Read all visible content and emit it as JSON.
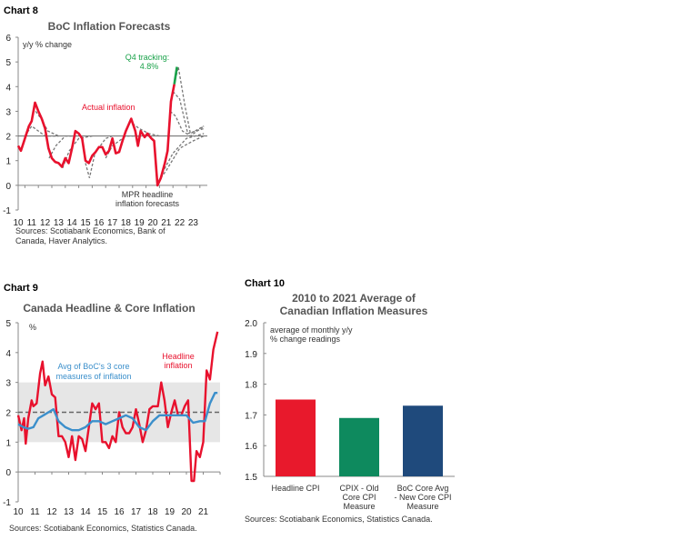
{
  "chart_data": [
    {
      "type": "line",
      "chart_label": "Chart 8",
      "title": "BoC Inflation Forecasts",
      "ylabel": "y/y % change",
      "ylim": [
        -1,
        6
      ],
      "yticks": [
        "6",
        "5",
        "4",
        "3",
        "2",
        "1",
        "0",
        "-1"
      ],
      "xticks": [
        "10",
        "11",
        "12",
        "13",
        "14",
        "15",
        "16",
        "17",
        "18",
        "19",
        "20",
        "21",
        "22",
        "23"
      ],
      "annotations": {
        "actual": "Actual inflation",
        "tracking_1": "Q4 tracking:",
        "tracking_2": "4.8%",
        "mpr_1": "MPR headline",
        "mpr_2": "inflation forecasts"
      },
      "source_1": "Sources: Scotiabank Economics, Bank of",
      "source_2": "Canada, Haver Analytics.",
      "series": [
        {
          "name": "Actual inflation",
          "color": "#e8112d",
          "points": [
            [
              10,
              1.6
            ],
            [
              10.2,
              1.4
            ],
            [
              10.5,
              1.9
            ],
            [
              10.8,
              2.4
            ],
            [
              11.0,
              2.6
            ],
            [
              11.25,
              3.35
            ],
            [
              11.5,
              3.0
            ],
            [
              11.75,
              2.7
            ],
            [
              12.0,
              2.3
            ],
            [
              12.25,
              1.5
            ],
            [
              12.5,
              1.1
            ],
            [
              12.75,
              0.95
            ],
            [
              13.0,
              0.9
            ],
            [
              13.25,
              0.75
            ],
            [
              13.5,
              1.1
            ],
            [
              13.75,
              0.9
            ],
            [
              14.0,
              1.5
            ],
            [
              14.25,
              2.2
            ],
            [
              14.5,
              2.1
            ],
            [
              14.75,
              1.9
            ],
            [
              15.0,
              1.0
            ],
            [
              15.25,
              0.9
            ],
            [
              15.5,
              1.2
            ],
            [
              15.75,
              1.35
            ],
            [
              16.0,
              1.55
            ],
            [
              16.25,
              1.55
            ],
            [
              16.5,
              1.25
            ],
            [
              16.75,
              1.4
            ],
            [
              17.0,
              1.9
            ],
            [
              17.25,
              1.3
            ],
            [
              17.5,
              1.35
            ],
            [
              17.75,
              1.8
            ],
            [
              18.0,
              2.2
            ],
            [
              18.4,
              2.7
            ],
            [
              18.7,
              2.2
            ],
            [
              18.9,
              1.6
            ],
            [
              19.1,
              2.2
            ],
            [
              19.4,
              1.95
            ],
            [
              19.6,
              2.1
            ],
            [
              19.9,
              1.9
            ],
            [
              20.1,
              1.8
            ],
            [
              20.35,
              0.0
            ],
            [
              20.6,
              0.3
            ],
            [
              20.9,
              0.9
            ],
            [
              21.1,
              1.4
            ],
            [
              21.35,
              3.4
            ],
            [
              21.6,
              4.1
            ]
          ]
        },
        {
          "name": "Q4 tracking",
          "color": "#1aa24a",
          "points": [
            [
              21.6,
              4.1
            ],
            [
              21.8,
              4.8
            ]
          ]
        }
      ],
      "forecasts": [
        [
          [
            10.5,
            2.0
          ],
          [
            11.0,
            2.4
          ],
          [
            11.5,
            2.2
          ],
          [
            12,
            2.0
          ],
          [
            13,
            2.0
          ]
        ],
        [
          [
            11.3,
            3.0
          ],
          [
            11.7,
            2.7
          ],
          [
            12.2,
            2.2
          ],
          [
            13,
            2.0
          ]
        ],
        [
          [
            12.3,
            1.1
          ],
          [
            12.8,
            1.6
          ],
          [
            13.5,
            2.0
          ],
          [
            14.5,
            2.0
          ]
        ],
        [
          [
            13.3,
            0.7
          ],
          [
            13.8,
            1.4
          ],
          [
            14.5,
            1.9
          ],
          [
            15.5,
            2.0
          ]
        ],
        [
          [
            15.0,
            0.9
          ],
          [
            15.3,
            0.3
          ],
          [
            15.7,
            1.3
          ],
          [
            16.5,
            1.9
          ],
          [
            17,
            2.0
          ]
        ],
        [
          [
            16.5,
            1.1
          ],
          [
            17,
            1.6
          ],
          [
            18,
            2.0
          ],
          [
            19,
            2.0
          ]
        ],
        [
          [
            18.5,
            2.5
          ],
          [
            19,
            2.3
          ],
          [
            19.7,
            2.1
          ],
          [
            20.5,
            2.0
          ]
        ],
        [
          [
            20.3,
            0.0
          ],
          [
            20.7,
            0.5
          ],
          [
            21.5,
            1.3
          ],
          [
            22.5,
            1.9
          ],
          [
            23.8,
            2.1
          ]
        ],
        [
          [
            20.6,
            0.3
          ],
          [
            21,
            0.6
          ],
          [
            22,
            1.5
          ],
          [
            23,
            1.8
          ],
          [
            23.8,
            2.0
          ]
        ],
        [
          [
            21.3,
            3.0
          ],
          [
            21.7,
            2.8
          ],
          [
            22.2,
            2.2
          ],
          [
            22.8,
            2.0
          ],
          [
            23.8,
            2.4
          ]
        ],
        [
          [
            21.6,
            4.1
          ],
          [
            21.9,
            4.8
          ],
          [
            22.4,
            3.2
          ],
          [
            22.8,
            2.1
          ],
          [
            23.8,
            2.4
          ]
        ],
        [
          [
            21.5,
            3.8
          ],
          [
            22,
            3.5
          ],
          [
            22.6,
            2.1
          ],
          [
            23.8,
            2.3
          ]
        ]
      ]
    },
    {
      "type": "line",
      "chart_label": "Chart 9",
      "title": "Canada Headline & Core Inflation",
      "ylabel": "%",
      "ylim": [
        -1,
        5
      ],
      "yticks": [
        "5",
        "4",
        "3",
        "2",
        "1",
        "0",
        "-1"
      ],
      "xticks": [
        "10",
        "11",
        "12",
        "13",
        "14",
        "15",
        "16",
        "17",
        "18",
        "19",
        "20",
        "21"
      ],
      "band": [
        1,
        3
      ],
      "target": 2,
      "annotations": {
        "core_1": "Avg of BoC's 3 core",
        "core_2": "measures of inflation",
        "headline_1": "Headline",
        "headline_2": "inflation"
      },
      "source": "Sources: Scotiabank Economics, Statistics Canada.",
      "series": [
        {
          "name": "Headline inflation",
          "color": "#e8112d",
          "points": [
            [
              10,
              1.9
            ],
            [
              10.2,
              1.4
            ],
            [
              10.35,
              1.8
            ],
            [
              10.45,
              0.95
            ],
            [
              10.6,
              1.8
            ],
            [
              10.8,
              2.4
            ],
            [
              10.9,
              2.2
            ],
            [
              11.1,
              2.3
            ],
            [
              11.3,
              3.3
            ],
            [
              11.45,
              3.7
            ],
            [
              11.6,
              2.9
            ],
            [
              11.8,
              3.2
            ],
            [
              12.0,
              2.6
            ],
            [
              12.2,
              2.5
            ],
            [
              12.4,
              1.2
            ],
            [
              12.6,
              1.2
            ],
            [
              12.8,
              1.0
            ],
            [
              13.0,
              0.5
            ],
            [
              13.2,
              1.2
            ],
            [
              13.4,
              0.4
            ],
            [
              13.6,
              1.2
            ],
            [
              13.8,
              1.1
            ],
            [
              14.0,
              0.7
            ],
            [
              14.2,
              1.5
            ],
            [
              14.4,
              2.3
            ],
            [
              14.6,
              2.1
            ],
            [
              14.8,
              2.3
            ],
            [
              15.0,
              1.0
            ],
            [
              15.2,
              1.0
            ],
            [
              15.4,
              0.8
            ],
            [
              15.6,
              1.2
            ],
            [
              15.8,
              1.0
            ],
            [
              16.0,
              2.0
            ],
            [
              16.2,
              1.5
            ],
            [
              16.4,
              1.3
            ],
            [
              16.6,
              1.3
            ],
            [
              16.8,
              1.5
            ],
            [
              17.0,
              2.1
            ],
            [
              17.2,
              1.6
            ],
            [
              17.4,
              1.0
            ],
            [
              17.6,
              1.4
            ],
            [
              17.8,
              2.1
            ],
            [
              18.0,
              2.2
            ],
            [
              18.3,
              2.2
            ],
            [
              18.5,
              3.0
            ],
            [
              18.7,
              2.4
            ],
            [
              18.9,
              1.5
            ],
            [
              19.1,
              2.0
            ],
            [
              19.3,
              2.4
            ],
            [
              19.5,
              1.9
            ],
            [
              19.7,
              1.9
            ],
            [
              19.9,
              2.2
            ],
            [
              20.1,
              2.4
            ],
            [
              20.3,
              -0.3
            ],
            [
              20.45,
              -0.3
            ],
            [
              20.6,
              0.7
            ],
            [
              20.8,
              0.5
            ],
            [
              21.0,
              1.0
            ],
            [
              21.2,
              3.4
            ],
            [
              21.4,
              3.1
            ],
            [
              21.6,
              4.1
            ],
            [
              21.85,
              4.7
            ]
          ]
        },
        {
          "name": "Avg of BoC's 3 core measures of inflation",
          "color": "#3b8fcb",
          "points": [
            [
              10,
              1.6
            ],
            [
              10.3,
              1.5
            ],
            [
              10.6,
              1.45
            ],
            [
              10.9,
              1.5
            ],
            [
              11.2,
              1.8
            ],
            [
              11.5,
              1.9
            ],
            [
              11.8,
              2.0
            ],
            [
              12.1,
              2.1
            ],
            [
              12.4,
              1.7
            ],
            [
              12.8,
              1.5
            ],
            [
              13.2,
              1.4
            ],
            [
              13.6,
              1.4
            ],
            [
              14.0,
              1.5
            ],
            [
              14.4,
              1.7
            ],
            [
              14.8,
              1.7
            ],
            [
              15.2,
              1.6
            ],
            [
              15.6,
              1.7
            ],
            [
              16.0,
              1.8
            ],
            [
              16.4,
              1.9
            ],
            [
              16.8,
              1.8
            ],
            [
              17.2,
              1.5
            ],
            [
              17.6,
              1.4
            ],
            [
              18.0,
              1.7
            ],
            [
              18.4,
              1.9
            ],
            [
              18.8,
              1.9
            ],
            [
              19.2,
              1.9
            ],
            [
              19.6,
              1.9
            ],
            [
              20.0,
              1.9
            ],
            [
              20.4,
              1.65
            ],
            [
              20.8,
              1.7
            ],
            [
              21.1,
              1.7
            ],
            [
              21.4,
              2.3
            ],
            [
              21.7,
              2.65
            ],
            [
              21.85,
              2.65
            ]
          ]
        }
      ]
    },
    {
      "type": "bar",
      "chart_label": "Chart 10",
      "title_1": "2010 to 2021 Average of",
      "title_2": "Canadian Inflation Measures",
      "ylabel_1": "average of monthly y/y",
      "ylabel_2": "% change readings",
      "ylim": [
        1.5,
        2.0
      ],
      "yticks": [
        "2.0",
        "1.9",
        "1.8",
        "1.7",
        "1.6",
        "1.5"
      ],
      "categories": [
        [
          "Headline CPI"
        ],
        [
          "CPIX - Old",
          "Core CPI",
          "Measure"
        ],
        [
          "BoC Core Avg",
          "- New Core CPI",
          "Measure"
        ]
      ],
      "values": [
        1.75,
        1.69,
        1.73
      ],
      "colors": [
        "#e8192c",
        "#0e8a5e",
        "#1f4a7c"
      ],
      "source": "Sources: Scotiabank Economics, Statistics Canada."
    }
  ]
}
